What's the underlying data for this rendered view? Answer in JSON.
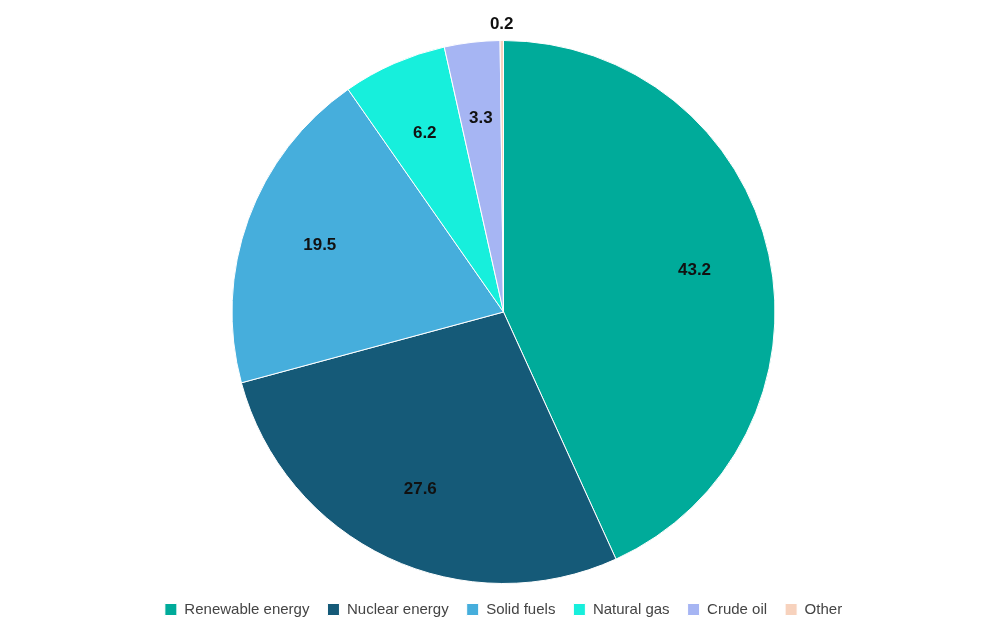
{
  "chart_data": {
    "type": "pie",
    "categories": [
      "Renewable energy",
      "Nuclear energy",
      "Solid fuels",
      "Natural gas",
      "Crude oil",
      "Other"
    ],
    "values": [
      43.2,
      27.6,
      19.5,
      6.2,
      3.3,
      0.2
    ],
    "colors": [
      "#00ab9a",
      "#155a78",
      "#46aedc",
      "#17efdc",
      "#a6b5f3",
      "#f7d2bd"
    ],
    "data_labels": true,
    "legend": "bottom"
  }
}
